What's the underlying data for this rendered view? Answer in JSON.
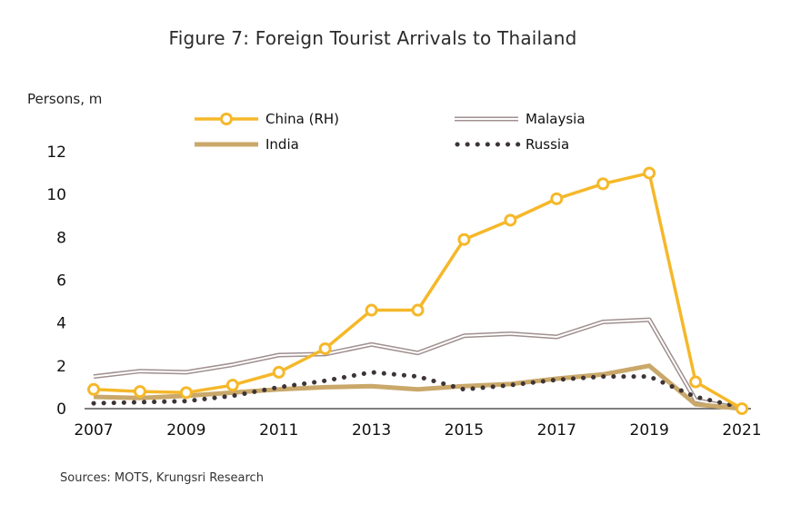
{
  "title": "Figure 7:  Foreign Tourist Arrivals to Thailand",
  "unit_label": "Persons, m",
  "source": "Sources: MOTS, Krungsri Research",
  "colors": {
    "china": "#F5B82A",
    "malaysia": "#A08F8F",
    "india": "#C9A86A",
    "russia": "#3E3436"
  },
  "chart_data": {
    "type": "line",
    "title": "Figure 7:  Foreign Tourist Arrivals to Thailand",
    "ylabel": "Persons, m",
    "x": [
      2007,
      2008,
      2009,
      2010,
      2011,
      2012,
      2013,
      2014,
      2015,
      2016,
      2017,
      2018,
      2019,
      2020,
      2021
    ],
    "x_ticks": [
      "2007",
      "2009",
      "2011",
      "2013",
      "2015",
      "2017",
      "2019",
      "2021"
    ],
    "y_ticks": [
      "0",
      "2",
      "4",
      "6",
      "8",
      "10",
      "12"
    ],
    "ylim": [
      0,
      12
    ],
    "grid": false,
    "legend": "top",
    "series": [
      {
        "name": "China (RH)",
        "key": "china",
        "style": "line-markers",
        "values": [
          0.9,
          0.8,
          0.75,
          1.1,
          1.7,
          2.8,
          4.6,
          4.6,
          7.9,
          8.8,
          9.8,
          10.5,
          11.0,
          1.25,
          0.0
        ]
      },
      {
        "name": "Malaysia",
        "key": "malaysia",
        "style": "double-line",
        "values": [
          1.5,
          1.75,
          1.7,
          2.05,
          2.5,
          2.55,
          3.0,
          2.6,
          3.4,
          3.5,
          3.35,
          4.05,
          4.15,
          0.4,
          0.0
        ]
      },
      {
        "name": "India",
        "key": "india",
        "style": "thick-line",
        "values": [
          0.55,
          0.5,
          0.6,
          0.75,
          0.9,
          1.0,
          1.05,
          0.9,
          1.05,
          1.15,
          1.4,
          1.6,
          2.0,
          0.2,
          0.0
        ]
      },
      {
        "name": "Russia",
        "key": "russia",
        "style": "dotted",
        "values": [
          0.25,
          0.3,
          0.35,
          0.6,
          1.0,
          1.3,
          1.7,
          1.5,
          0.9,
          1.1,
          1.35,
          1.5,
          1.5,
          0.55,
          0.05
        ]
      }
    ]
  }
}
